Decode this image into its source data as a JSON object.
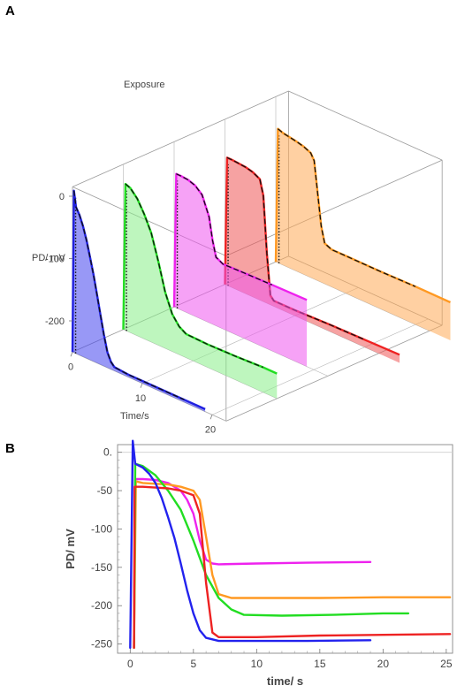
{
  "panels": {
    "a_label": "A",
    "b_label": "B"
  },
  "chart_data": [
    {
      "type": "line",
      "panel": "A",
      "view": "3d",
      "annotation": "Exposure",
      "xlabel": "Time/s",
      "ylabel": "PD/ mV",
      "x_ticks": [
        "0",
        "10",
        "20"
      ],
      "y_ticks": [
        "0",
        "-100",
        "-200"
      ],
      "xlim": [
        0,
        22
      ],
      "ylim": [
        -250,
        15
      ],
      "series": [
        {
          "color": "#2020e0",
          "fill": "#4444ee",
          "points": [
            [
              0,
              -250
            ],
            [
              0.2,
              10
            ],
            [
              0.5,
              -15
            ],
            [
              1,
              -25
            ],
            [
              1.5,
              -40
            ],
            [
              2,
              -60
            ],
            [
              2.5,
              -85
            ],
            [
              3,
              -110
            ],
            [
              3.5,
              -140
            ],
            [
              4,
              -170
            ],
            [
              4.5,
              -200
            ],
            [
              5,
              -225
            ],
            [
              5.5,
              -238
            ],
            [
              6,
              -244
            ],
            [
              8,
              -246
            ],
            [
              12,
              -246
            ],
            [
              16,
              -246
            ],
            [
              19,
              -246
            ]
          ]
        },
        {
          "color": "#22dd22",
          "fill": "#88ee88",
          "points": [
            [
              0,
              -250
            ],
            [
              0.3,
              -15
            ],
            [
              1,
              -18
            ],
            [
              2,
              -30
            ],
            [
              3,
              -50
            ],
            [
              4,
              -75
            ],
            [
              5,
              -115
            ],
            [
              6,
              -160
            ],
            [
              7,
              -190
            ],
            [
              8,
              -205
            ],
            [
              9,
              -212
            ],
            [
              12,
              -213
            ],
            [
              16,
              -212
            ],
            [
              20,
              -210
            ],
            [
              22,
              -210
            ]
          ]
        },
        {
          "color": "#ee22ee",
          "fill": "#ee55ee",
          "points": [
            [
              0,
              -250
            ],
            [
              0.3,
              -35
            ],
            [
              1,
              -35
            ],
            [
              2,
              -36
            ],
            [
              3,
              -40
            ],
            [
              4,
              -50
            ],
            [
              5,
              -80
            ],
            [
              5.5,
              -115
            ],
            [
              6,
              -140
            ],
            [
              7,
              -146
            ],
            [
              10,
              -145
            ],
            [
              14,
              -144
            ],
            [
              19,
              -143
            ]
          ]
        },
        {
          "color": "#ee2222",
          "fill": "#ee5555",
          "points": [
            [
              0,
              -250
            ],
            [
              0.3,
              -45
            ],
            [
              1,
              -45
            ],
            [
              2,
              -46
            ],
            [
              3,
              -47
            ],
            [
              4,
              -50
            ],
            [
              5,
              -56
            ],
            [
              5.5,
              -80
            ],
            [
              6,
              -170
            ],
            [
              6.5,
              -235
            ],
            [
              7,
              -241
            ],
            [
              10,
              -241
            ],
            [
              15,
              -239
            ],
            [
              20,
              -238
            ],
            [
              25,
              -237
            ]
          ]
        },
        {
          "color": "#ff9922",
          "fill": "#ffaa55",
          "points": [
            [
              0,
              -250
            ],
            [
              0.3,
              -35
            ],
            [
              1,
              -38
            ],
            [
              2,
              -40
            ],
            [
              3,
              -42
            ],
            [
              4,
              -45
            ],
            [
              5,
              -50
            ],
            [
              5.5,
              -60
            ],
            [
              6,
              -110
            ],
            [
              6.5,
              -160
            ],
            [
              7,
              -185
            ],
            [
              8,
              -190
            ],
            [
              10,
              -190
            ],
            [
              15,
              -190
            ],
            [
              20,
              -189
            ],
            [
              25,
              -189
            ]
          ]
        }
      ]
    },
    {
      "type": "line",
      "panel": "B",
      "xlabel": "time/ s",
      "ylabel": "PD/ mV",
      "x_ticks": [
        0,
        5,
        10,
        15,
        20,
        25
      ],
      "y_ticks": [
        0,
        -50,
        -100,
        -150,
        -200,
        -250
      ],
      "y_tick_labels": [
        "0.",
        "-50",
        "-100",
        "-150",
        "-200",
        "-250"
      ],
      "xlim": [
        -1,
        25.5
      ],
      "ylim": [
        -262,
        10
      ],
      "series": [
        {
          "color": "#ee22ee",
          "points": [
            [
              0.3,
              -255
            ],
            [
              0.4,
              -35
            ],
            [
              1,
              -35
            ],
            [
              2,
              -36
            ],
            [
              3,
              -40
            ],
            [
              4,
              -50
            ],
            [
              4.5,
              -62
            ],
            [
              5,
              -80
            ],
            [
              5.5,
              -115
            ],
            [
              6,
              -140
            ],
            [
              6.5,
              -145
            ],
            [
              7,
              -146
            ],
            [
              10,
              -145
            ],
            [
              14,
              -144
            ],
            [
              19,
              -143
            ]
          ]
        },
        {
          "color": "#ff9922",
          "points": [
            [
              0.3,
              -255
            ],
            [
              0.45,
              -38
            ],
            [
              1,
              -40
            ],
            [
              2,
              -41
            ],
            [
              3,
              -42
            ],
            [
              4,
              -45
            ],
            [
              5,
              -50
            ],
            [
              5.5,
              -62
            ],
            [
              6,
              -110
            ],
            [
              6.5,
              -160
            ],
            [
              7,
              -185
            ],
            [
              8,
              -190
            ],
            [
              10,
              -190
            ],
            [
              15,
              -190
            ],
            [
              20,
              -189
            ],
            [
              25.3,
              -189
            ]
          ]
        },
        {
          "color": "#22dd22",
          "points": [
            [
              0.3,
              -255
            ],
            [
              0.4,
              -15
            ],
            [
              1,
              -18
            ],
            [
              2,
              -30
            ],
            [
              3,
              -50
            ],
            [
              4,
              -75
            ],
            [
              5,
              -115
            ],
            [
              6,
              -160
            ],
            [
              7,
              -190
            ],
            [
              8,
              -205
            ],
            [
              9,
              -212
            ],
            [
              12,
              -213
            ],
            [
              16,
              -212
            ],
            [
              20,
              -210
            ],
            [
              22,
              -210
            ]
          ]
        },
        {
          "color": "#ee2222",
          "points": [
            [
              0.3,
              -255
            ],
            [
              0.35,
              -45
            ],
            [
              1,
              -45
            ],
            [
              2,
              -46
            ],
            [
              3,
              -47
            ],
            [
              4,
              -50
            ],
            [
              5,
              -56
            ],
            [
              5.5,
              -80
            ],
            [
              6,
              -170
            ],
            [
              6.5,
              -235
            ],
            [
              7,
              -241
            ],
            [
              10,
              -241
            ],
            [
              15,
              -239
            ],
            [
              20,
              -238
            ],
            [
              25.3,
              -237
            ]
          ]
        },
        {
          "color": "#2222ee",
          "points": [
            [
              0,
              -255
            ],
            [
              0.2,
              15
            ],
            [
              0.4,
              -15
            ],
            [
              1,
              -20
            ],
            [
              1.5,
              -28
            ],
            [
              2,
              -40
            ],
            [
              2.5,
              -60
            ],
            [
              3,
              -85
            ],
            [
              3.5,
              -112
            ],
            [
              4,
              -145
            ],
            [
              4.5,
              -180
            ],
            [
              5,
              -210
            ],
            [
              5.5,
              -232
            ],
            [
              6,
              -242
            ],
            [
              7,
              -246
            ],
            [
              10,
              -246
            ],
            [
              14,
              -246
            ],
            [
              19,
              -245
            ]
          ]
        }
      ]
    }
  ]
}
